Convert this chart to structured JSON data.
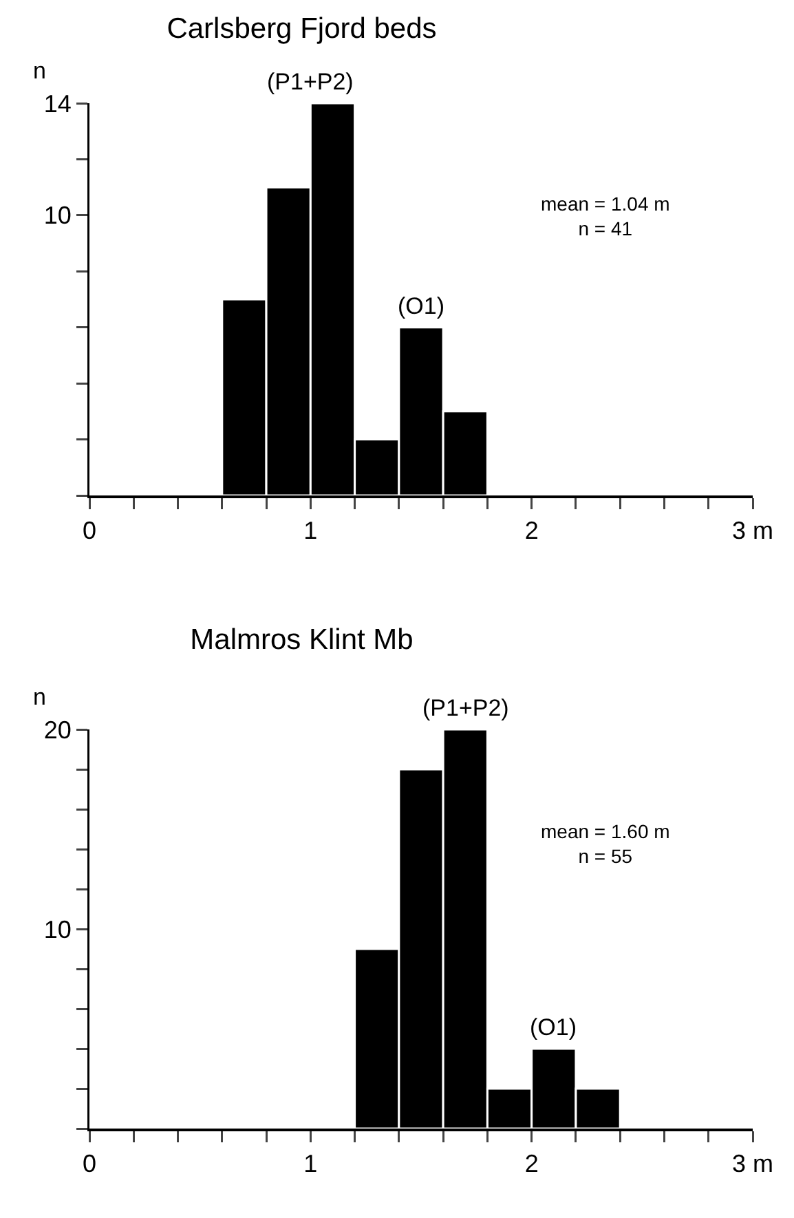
{
  "chart_data": [
    {
      "type": "histogram",
      "title": "Carlsberg Fjord beds",
      "ylabel": "n",
      "bins": [
        0.6,
        0.8,
        1.0,
        1.2,
        1.4,
        1.6,
        1.8
      ],
      "values": [
        7,
        11,
        14,
        2,
        6,
        3
      ],
      "color": "#000000",
      "xlim": [
        0,
        3
      ],
      "xticks": [
        0,
        {
          "value": 0.2,
          "label": null
        },
        {
          "value": 0.4,
          "label": null
        },
        {
          "value": 0.6,
          "label": null
        },
        {
          "value": 0.8,
          "label": null
        },
        1,
        {
          "value": 1.2,
          "label": null
        },
        {
          "value": 1.4,
          "label": null
        },
        {
          "value": 1.6,
          "label": null
        },
        {
          "value": 1.8,
          "label": null
        },
        2,
        {
          "value": 2.2,
          "label": null
        },
        {
          "value": 2.4,
          "label": null
        },
        {
          "value": 2.6,
          "label": null
        },
        {
          "value": 2.8,
          "label": null
        },
        {
          "value": 3,
          "label": "3 m"
        }
      ],
      "ylim": [
        0,
        14
      ],
      "yticks": [
        {
          "value": 0,
          "label": null
        },
        {
          "value": 2,
          "label": null
        },
        {
          "value": 4,
          "label": null
        },
        {
          "value": 6,
          "label": null
        },
        {
          "value": 8,
          "label": null
        },
        10,
        {
          "value": 12,
          "label": null
        },
        14
      ],
      "grid": false,
      "annotations": [
        {
          "text": "(P1+P2)",
          "x": 1.0,
          "y": 14
        },
        {
          "text": "(O1)",
          "x": 1.5,
          "y": 6
        },
        "mean = 1.04 m\nn = 41"
      ]
    },
    {
      "type": "histogram",
      "title": "Malmros Klint Mb",
      "ylabel": "n",
      "bins": [
        1.2,
        1.4,
        1.6,
        1.8,
        2.0,
        2.2,
        2.4
      ],
      "values": [
        9,
        18,
        20,
        2,
        4,
        2
      ],
      "color": "#000000",
      "xlim": [
        0,
        3
      ],
      "xticks": [
        0,
        {
          "value": 0.2,
          "label": null
        },
        {
          "value": 0.4,
          "label": null
        },
        {
          "value": 0.6,
          "label": null
        },
        {
          "value": 0.8,
          "label": null
        },
        1,
        {
          "value": 1.2,
          "label": null
        },
        {
          "value": 1.4,
          "label": null
        },
        {
          "value": 1.6,
          "label": null
        },
        {
          "value": 1.8,
          "label": null
        },
        2,
        {
          "value": 2.2,
          "label": null
        },
        {
          "value": 2.4,
          "label": null
        },
        {
          "value": 2.6,
          "label": null
        },
        {
          "value": 2.8,
          "label": null
        },
        {
          "value": 3,
          "label": "3 m"
        }
      ],
      "ylim": [
        0,
        20
      ],
      "yticks": [
        {
          "value": 0,
          "label": null
        },
        {
          "value": 2,
          "label": null
        },
        {
          "value": 4,
          "label": null
        },
        {
          "value": 6,
          "label": null
        },
        {
          "value": 8,
          "label": null
        },
        10,
        {
          "value": 12,
          "label": null
        },
        {
          "value": 14,
          "label": null
        },
        {
          "value": 16,
          "label": null
        },
        {
          "value": 18,
          "label": null
        },
        20
      ],
      "grid": false,
      "annotations": [
        {
          "text": "(P1+P2)",
          "x": 1.7,
          "y": 20
        },
        {
          "text": "(O1)",
          "x": 2.1,
          "y": 4
        },
        "mean = 1.60 m\nn = 55"
      ]
    }
  ]
}
